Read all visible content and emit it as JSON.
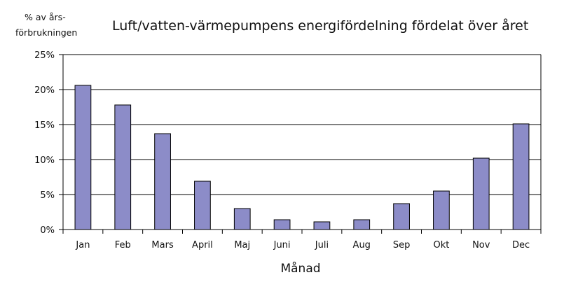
{
  "chart_data": {
    "type": "bar",
    "title": "Luft/vatten-värmepumpens energifördelning fördelat över året",
    "ylabel_lines": [
      "% av års-",
      "förbrukningen"
    ],
    "xlabel": "Månad",
    "categories": [
      "Jan",
      "Feb",
      "Mars",
      "April",
      "Maj",
      "Juni",
      "Juli",
      "Aug",
      "Sep",
      "Okt",
      "Nov",
      "Dec"
    ],
    "values": [
      20.6,
      17.8,
      13.7,
      6.9,
      3.0,
      1.4,
      1.1,
      1.4,
      3.7,
      5.5,
      10.2,
      15.1
    ],
    "ylim": [
      0,
      25
    ],
    "yticks": [
      0,
      5,
      10,
      15,
      20,
      25
    ],
    "ytick_labels": [
      "0%",
      "5%",
      "10%",
      "15%",
      "20%",
      "25%"
    ],
    "grid": true,
    "bar_color": "#8c8cc8",
    "bar_edge_color": "#000000"
  }
}
